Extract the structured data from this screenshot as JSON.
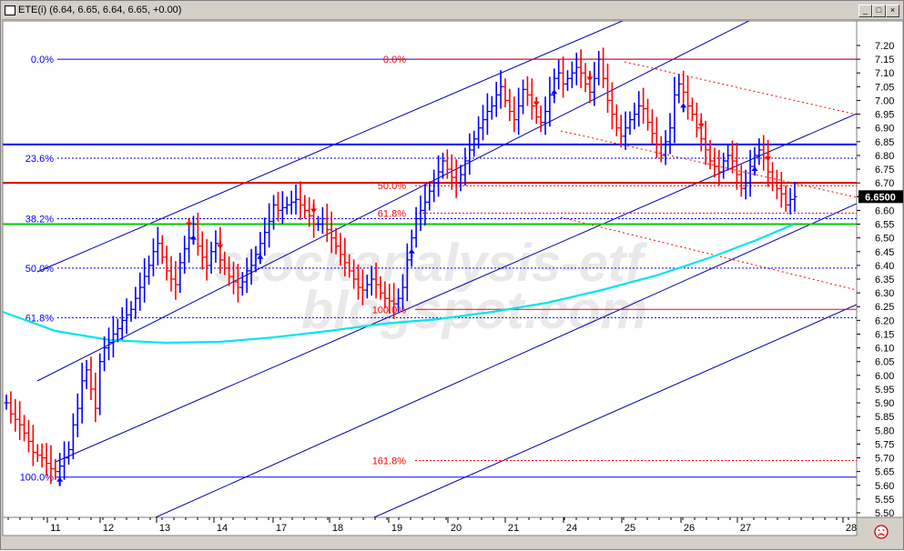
{
  "window": {
    "title": "ETE(i) (6.64, 6.65, 6.64, 6.65, +0.00)",
    "min_glyph": "_",
    "max_glyph": "□",
    "close_glyph": "×"
  },
  "watermark": {
    "line1": "stockanalysis-etf",
    "line2": "blogspot.com"
  },
  "colors": {
    "up": "#0000ff",
    "down": "#ff0000",
    "channel": "#0000aa",
    "ma": "#00e5ee",
    "support": "#00cc00",
    "resistance": "#e00000",
    "level_blue": "#0000ff",
    "last_price_bg": "#000000"
  },
  "chart_data": {
    "type": "bar",
    "ylim": [
      5.5,
      7.2
    ],
    "yticks": [
      "7.20",
      "7.15",
      "7.10",
      "7.05",
      "7.00",
      "6.95",
      "6.90",
      "6.85",
      "6.80",
      "6.75",
      "6.70",
      "6.65",
      "6.60",
      "6.55",
      "6.50",
      "6.45",
      "6.40",
      "6.35",
      "6.30",
      "6.25",
      "6.20",
      "6.15",
      "6.10",
      "6.05",
      "6.00",
      "5.95",
      "5.90",
      "5.85",
      "5.80",
      "5.75",
      "5.70",
      "5.65",
      "5.60",
      "5.55",
      "5.50"
    ],
    "xlabels": [
      "11",
      "12",
      "13",
      "14",
      "17",
      "18",
      "19",
      "20",
      "21",
      "24",
      "25",
      "26",
      "27",
      "28"
    ],
    "last_price": "6.6500",
    "fib_left": [
      {
        "label": "0.0%",
        "value": 7.15
      },
      {
        "label": "23.6%",
        "value": 6.79
      },
      {
        "label": "38.2%",
        "value": 6.57
      },
      {
        "label": "50.0%",
        "value": 6.39
      },
      {
        "label": "61.8%",
        "value": 6.21
      },
      {
        "label": "100.0%",
        "value": 5.63
      }
    ],
    "fib_right": [
      {
        "label": "0.0%",
        "value": 7.15
      },
      {
        "label": "50.0%",
        "value": 6.69
      },
      {
        "label": "61.8%",
        "value": 6.59
      },
      {
        "label": "100.0%",
        "value": 6.24
      },
      {
        "label": "161.8%",
        "value": 5.69
      }
    ],
    "horizontal_lines": [
      {
        "value": 6.84,
        "color": "blue"
      },
      {
        "value": 6.7,
        "color": "red"
      },
      {
        "value": 6.55,
        "color": "green"
      }
    ],
    "close_series": [
      5.9,
      5.86,
      5.84,
      5.82,
      5.79,
      5.76,
      5.72,
      5.71,
      5.7,
      5.68,
      5.66,
      5.65,
      5.67,
      5.7,
      5.73,
      5.82,
      5.88,
      5.98,
      6.02,
      5.95,
      5.88,
      6.05,
      6.1,
      6.12,
      6.15,
      6.17,
      6.2,
      6.22,
      6.24,
      6.28,
      6.32,
      6.36,
      6.4,
      6.45,
      6.48,
      6.43,
      6.38,
      6.35,
      6.33,
      6.41,
      6.46,
      6.5,
      6.55,
      6.47,
      6.43,
      6.4,
      6.45,
      6.48,
      6.42,
      6.39,
      6.36,
      6.34,
      6.32,
      6.34,
      6.38,
      6.4,
      6.44,
      6.48,
      6.52,
      6.56,
      6.62,
      6.6,
      6.61,
      6.62,
      6.63,
      6.64,
      6.62,
      6.6,
      6.58,
      6.55,
      6.55,
      6.57,
      6.53,
      6.5,
      6.47,
      6.44,
      6.41,
      6.38,
      6.35,
      6.32,
      6.31,
      6.33,
      6.35,
      6.33,
      6.3,
      6.28,
      6.27,
      6.26,
      6.28,
      6.32,
      6.42,
      6.5,
      6.57,
      6.6,
      6.63,
      6.67,
      6.7,
      6.74,
      6.78,
      6.75,
      6.72,
      6.7,
      6.73,
      6.78,
      6.82,
      6.86,
      6.9,
      6.93,
      6.96,
      6.98,
      7.02,
      7.05,
      7.0,
      6.96,
      6.93,
      6.98,
      7.04,
      7.02,
      6.98,
      6.94,
      6.92,
      6.96,
      7.02,
      7.08,
      7.1,
      7.06,
      7.08,
      7.1,
      7.12,
      7.1,
      7.06,
      7.03,
      7.08,
      7.15,
      7.08,
      7.0,
      6.95,
      6.9,
      6.87,
      6.9,
      6.93,
      6.95,
      6.98,
      6.97,
      6.92,
      6.88,
      6.84,
      6.8,
      6.85,
      6.9,
      7.02,
      7.06,
      7.03,
      6.98,
      6.95,
      6.9,
      6.86,
      6.82,
      6.78,
      6.76,
      6.74,
      6.78,
      6.8,
      6.78,
      6.73,
      6.68,
      6.7,
      6.76,
      6.8,
      6.82,
      6.79,
      6.74,
      6.7,
      6.68,
      6.66,
      6.62,
      6.64,
      6.65
    ],
    "arrows": [
      {
        "i": 12,
        "dir": "up"
      },
      {
        "i": 41,
        "dir": "down"
      },
      {
        "i": 42,
        "dir": "up"
      },
      {
        "i": 48,
        "dir": "down"
      },
      {
        "i": 57,
        "dir": "up"
      },
      {
        "i": 69,
        "dir": "down"
      },
      {
        "i": 91,
        "dir": "up"
      },
      {
        "i": 119,
        "dir": "down"
      },
      {
        "i": 123,
        "dir": "up"
      },
      {
        "i": 131,
        "dir": "down"
      },
      {
        "i": 152,
        "dir": "up"
      },
      {
        "i": 156,
        "dir": "down"
      },
      {
        "i": 168,
        "dir": "up"
      },
      {
        "i": 171,
        "dir": "down"
      }
    ]
  }
}
